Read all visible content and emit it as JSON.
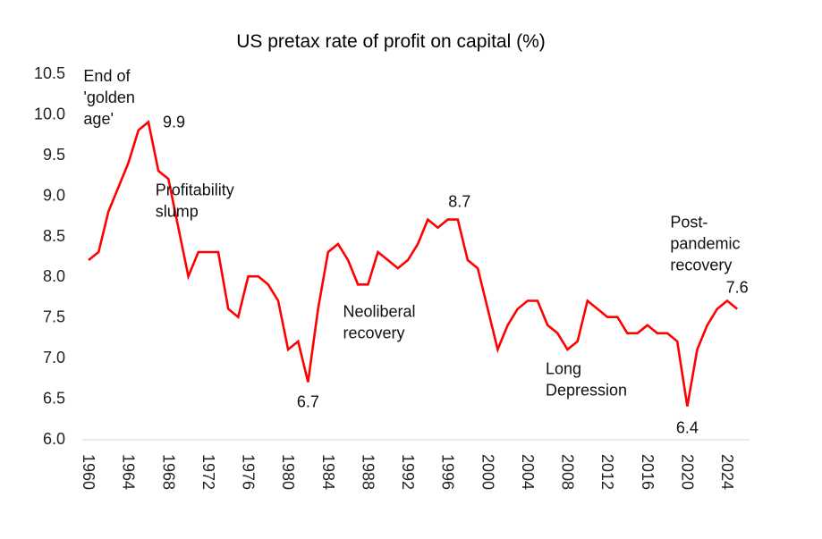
{
  "chart_data": {
    "type": "line",
    "title": "US pretax rate of profit on capital (%)",
    "xlabel": "",
    "ylabel": "",
    "ylim": [
      6.0,
      10.5
    ],
    "yticks": [
      "6.0",
      "6.5",
      "7.0",
      "7.5",
      "8.0",
      "8.5",
      "9.0",
      "9.5",
      "10.0",
      "10.5"
    ],
    "xticks": [
      "1960",
      "1964",
      "1968",
      "1972",
      "1976",
      "1980",
      "1984",
      "1988",
      "1992",
      "1996",
      "2000",
      "2004",
      "2008",
      "2012",
      "2016",
      "2020",
      "2024"
    ],
    "grid": false,
    "legend": "none",
    "series": [
      {
        "name": "US pretax rate of profit",
        "color": "#ff0000",
        "x": [
          1960,
          1961,
          1962,
          1963,
          1964,
          1965,
          1966,
          1967,
          1968,
          1969,
          1970,
          1971,
          1972,
          1973,
          1974,
          1975,
          1976,
          1977,
          1978,
          1979,
          1980,
          1981,
          1982,
          1983,
          1984,
          1985,
          1986,
          1987,
          1988,
          1989,
          1990,
          1991,
          1992,
          1993,
          1994,
          1995,
          1996,
          1997,
          1998,
          1999,
          2000,
          2001,
          2002,
          2003,
          2004,
          2005,
          2006,
          2007,
          2008,
          2009,
          2010,
          2011,
          2012,
          2013,
          2014,
          2015,
          2016,
          2017,
          2018,
          2019,
          2020,
          2021,
          2022,
          2023,
          2024,
          2025
        ],
        "values": [
          8.2,
          8.3,
          8.8,
          9.1,
          9.4,
          9.8,
          9.9,
          9.3,
          9.2,
          8.6,
          8.0,
          8.3,
          8.3,
          8.3,
          7.6,
          7.5,
          8.0,
          8.0,
          7.9,
          7.7,
          7.1,
          7.2,
          6.7,
          7.6,
          8.3,
          8.4,
          8.2,
          7.9,
          7.9,
          8.3,
          8.2,
          8.1,
          8.2,
          8.4,
          8.7,
          8.6,
          8.7,
          8.7,
          8.2,
          8.1,
          7.6,
          7.1,
          7.4,
          7.6,
          7.7,
          7.7,
          7.4,
          7.3,
          7.1,
          7.2,
          7.7,
          7.6,
          7.5,
          7.5,
          7.3,
          7.3,
          7.4,
          7.3,
          7.3,
          7.2,
          6.4,
          7.1,
          7.4,
          7.6,
          7.7,
          7.6
        ]
      }
    ],
    "data_labels": [
      {
        "x": 1966,
        "y": 9.9,
        "text": "9.9"
      },
      {
        "x": 1982,
        "y": 6.7,
        "text": "6.7"
      },
      {
        "x": 1997,
        "y": 8.7,
        "text": "8.7"
      },
      {
        "x": 2020,
        "y": 6.4,
        "text": "6.4"
      },
      {
        "x": 2025,
        "y": 7.6,
        "text": "7.6"
      }
    ],
    "annotations": [
      {
        "lines": [
          "End of",
          "'golden",
          "age'"
        ],
        "x": 1959.5,
        "y": 10.4
      },
      {
        "lines": [
          "Profitability",
          "slump"
        ],
        "x": 1966.7,
        "y": 9.0
      },
      {
        "lines": [
          "Neoliberal",
          "recovery"
        ],
        "x": 1985.5,
        "y": 7.5
      },
      {
        "lines": [
          "Long",
          "Depression"
        ],
        "x": 2005.8,
        "y": 6.8
      },
      {
        "lines": [
          "Post-",
          "pandemic",
          "recovery"
        ],
        "x": 2018.3,
        "y": 8.6
      }
    ]
  }
}
